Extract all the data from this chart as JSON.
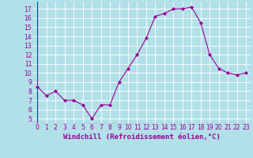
{
  "x": [
    0,
    1,
    2,
    3,
    4,
    5,
    6,
    7,
    8,
    9,
    10,
    11,
    12,
    13,
    14,
    15,
    16,
    17,
    18,
    19,
    20,
    21,
    22,
    23
  ],
  "y": [
    8.5,
    7.5,
    8.0,
    7.0,
    7.0,
    6.5,
    5.0,
    6.5,
    6.5,
    9.0,
    10.5,
    12.0,
    13.8,
    16.2,
    16.5,
    17.0,
    17.0,
    17.2,
    15.5,
    12.0,
    10.5,
    10.0,
    9.8,
    10.0
  ],
  "line_color": "#990099",
  "marker": "D",
  "marker_size": 2,
  "bg_color": "#b2e0e8",
  "grid_color": "#ffffff",
  "xlabel": "Windchill (Refroidissement éolien,°C)",
  "xlabel_color": "#990099",
  "tick_color": "#990099",
  "ylim": [
    4.5,
    17.8
  ],
  "xlim": [
    -0.5,
    23.5
  ],
  "yticks": [
    5,
    6,
    7,
    8,
    9,
    10,
    11,
    12,
    13,
    14,
    15,
    16,
    17
  ],
  "xticks": [
    0,
    1,
    2,
    3,
    4,
    5,
    6,
    7,
    8,
    9,
    10,
    11,
    12,
    13,
    14,
    15,
    16,
    17,
    18,
    19,
    20,
    21,
    22,
    23
  ],
  "tick_fontsize": 5.5,
  "xlabel_fontsize": 6.5,
  "linewidth": 0.8
}
